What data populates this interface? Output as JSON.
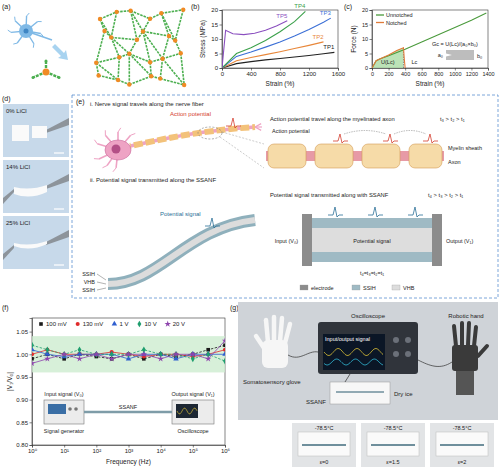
{
  "panels": [
    "(a)",
    "(b)",
    "(c)",
    "(d)",
    "(e)",
    "(f)",
    "(g)"
  ],
  "chart_data": [
    {
      "type": "line",
      "xlabel": "Strain (%)",
      "ylabel": "Stress (MPa)",
      "xlim": [
        0,
        1600
      ],
      "xticks": [
        0,
        400,
        800,
        1200,
        1600
      ],
      "ylim": [
        0,
        20
      ],
      "yticks": [
        0,
        5,
        10,
        15,
        20
      ],
      "series": [
        {
          "name": "TP1",
          "color": "#222222",
          "x": [
            0,
            200,
            400,
            600,
            800,
            1000,
            1200,
            1400,
            1550
          ],
          "values": [
            0,
            1.5,
            2.2,
            2.8,
            3.3,
            3.8,
            4.3,
            4.9,
            5.4
          ]
        },
        {
          "name": "TP2",
          "color": "#e8873a",
          "x": [
            0,
            200,
            400,
            600,
            800,
            1000,
            1200,
            1400
          ],
          "values": [
            0,
            2.5,
            3.6,
            4.6,
            5.6,
            6.7,
            7.8,
            9.0
          ]
        },
        {
          "name": "TP3",
          "color": "#3b6fd6",
          "x": [
            0,
            200,
            400,
            600,
            800,
            1000,
            1200,
            1400,
            1500
          ],
          "values": [
            0,
            4,
            5.5,
            7.2,
            9,
            11,
            13.3,
            15.8,
            17.2
          ]
        },
        {
          "name": "TP4",
          "color": "#3aa04a",
          "x": [
            0,
            200,
            400,
            600,
            800,
            1000,
            1150
          ],
          "values": [
            0,
            5,
            7,
            9.5,
            12.5,
            16,
            19.5
          ]
        },
        {
          "name": "TP5",
          "color": "#8a4fbf",
          "x": [
            0,
            50,
            150,
            300,
            450,
            600,
            750,
            900
          ],
          "values": [
            0,
            13,
            11.8,
            11.5,
            12,
            13,
            14.5,
            16.3
          ]
        }
      ]
    },
    {
      "type": "line",
      "xlabel": "Strain (%)",
      "ylabel": "Force (N)",
      "xlim": [
        0,
        1400
      ],
      "xticks": [
        0,
        200,
        400,
        600,
        800,
        1000,
        1200,
        1400
      ],
      "ylim": [
        0,
        20
      ],
      "yticks": [
        0,
        5,
        10,
        15,
        20
      ],
      "legend": "top-left",
      "series": [
        {
          "name": "Unnotched",
          "color": "#4a9a3c",
          "x": [
            0,
            50,
            100,
            200,
            400,
            600,
            800,
            1000,
            1200,
            1380
          ],
          "values": [
            0,
            2.5,
            3.2,
            4.2,
            6.5,
            9,
            11.5,
            14,
            16.5,
            19
          ]
        },
        {
          "name": "Notched",
          "color": "#e07b39",
          "x": [
            0,
            50,
            100,
            200,
            300,
            380,
            390,
            400
          ],
          "values": [
            0,
            2.5,
            3.2,
            4.5,
            6,
            7,
            3,
            0
          ]
        }
      ],
      "critical_strain": 380,
      "annotations": {
        "area": "U(Lc)",
        "length": "Lc",
        "formula": "Gc = U(Lc)/(a₀×b₀)",
        "width": "a₀",
        "thickness": "b₀"
      }
    },
    {
      "type": "line",
      "log": "x",
      "xlabel": "Frequency (Hz)",
      "ylabel": "|V₁/V₀|",
      "x": [
        1,
        3,
        10,
        30,
        100,
        300,
        1000,
        3000,
        10000,
        30000,
        100000,
        300000,
        1000000
      ],
      "xlim": [
        1,
        1000000
      ],
      "xticks": [
        {
          "value": 1,
          "label": "10⁰"
        },
        {
          "value": 10,
          "label": "10¹"
        },
        {
          "value": 100,
          "label": "10²"
        },
        {
          "value": 1000,
          "label": "10³"
        },
        {
          "value": 10000,
          "label": "10⁴"
        },
        {
          "value": 100000,
          "label": "10⁵"
        },
        {
          "value": 1000000,
          "label": "10⁶"
        }
      ],
      "ylim": [
        0.8,
        1.08
      ],
      "yticks": [
        {
          "value": 0.8,
          "label": "0.80"
        },
        {
          "value": 0.85,
          "label": "0.85"
        },
        {
          "value": 0.9,
          "label": "0.90"
        },
        {
          "value": 0.95,
          "label": "0.95"
        },
        {
          "value": 1.0,
          "label": "1.00"
        },
        {
          "value": 1.05,
          "label": "1.05"
        }
      ],
      "legend": "top",
      "band": [
        0.96,
        1.04
      ],
      "series": [
        {
          "name": "100 mV",
          "color": "#1a1a1a",
          "marker": "square",
          "line_style": "dashed",
          "values": [
            0.99,
            1.0,
            0.99,
            1.0,
            0.995,
            0.99,
            1.0,
            0.99,
            1.0,
            0.995,
            1.0,
            1.01,
            1.02
          ]
        },
        {
          "name": "130 mV",
          "color": "#e02b2b",
          "marker": "circle",
          "line_style": "solid",
          "values": [
            1.0,
            1.01,
            1.0,
            1.0,
            1.0,
            1.005,
            1.0,
            0.995,
            1.0,
            1.0,
            0.995,
            1.0,
            1.01
          ]
        },
        {
          "name": "1 V",
          "color": "#2f5fd0",
          "marker": "triangle",
          "line_style": "solid",
          "values": [
            1.01,
            1.0,
            0.995,
            1.0,
            1.0,
            1.0,
            0.99,
            1.0,
            1.0,
            0.99,
            1.0,
            1.0,
            1.0
          ]
        },
        {
          "name": "10 V",
          "color": "#1f9e6e",
          "marker": "diamond",
          "line_style": "dashed",
          "values": [
            1.02,
            1.01,
            1.0,
            1.01,
            1.0,
            1.0,
            1.0,
            1.01,
            1.0,
            1.0,
            0.99,
            1.0,
            0.985
          ]
        },
        {
          "name": "20 V",
          "color": "#8e44ad",
          "marker": "star",
          "line_style": "solid",
          "values": [
            0.98,
            0.99,
            1.0,
            0.99,
            1.0,
            0.99,
            1.0,
            1.0,
            0.99,
            1.0,
            1.0,
            0.99,
            1.03
          ]
        }
      ],
      "inset": {
        "input": "Input signal (V₀)",
        "fiber": "SSANF",
        "output": "Output signal (V₁)",
        "source": "Signal generator",
        "meter": "Oscilloscope"
      }
    }
  ],
  "panel_d": {
    "photos": [
      "0% LiCl",
      "14% LiCl",
      "25% LiCl"
    ]
  },
  "panel_e": {
    "part_i": {
      "heading": "i. Nerve signal travels along the nerve fiber",
      "signal": "Action potential",
      "inset_title": "Action potential travel along the myelinated axon",
      "time_order": "t₃ > t₂ > t₁",
      "inset_signal": "Action potential",
      "labels": [
        "Myelin sheath",
        "Axon"
      ]
    },
    "part_ii": {
      "heading": "ii. Potential signal transmitted along the SSANF",
      "signal": "Potential signal",
      "layers": [
        "SSIH",
        "VHB",
        "SSIH"
      ],
      "inset_title": "Potential signal transmitted along with SSANF",
      "time_order": "t₄ > t₃ > t₂ > t₁",
      "input": "Input (V₀)",
      "output": "Output (V₁)",
      "inset_signal": "Potential signal",
      "equal_times": "t₄=t₃=t₂=t₁",
      "key": [
        "electrode",
        "SSIH",
        "VHB"
      ]
    }
  },
  "panel_g": {
    "labels": {
      "glove": "Somatosensory glove",
      "scope": "Oscilloscope",
      "signal": "Input/output signal",
      "hand": "Robotic hand",
      "fiber": "SSANF",
      "ice": "Dry ice"
    },
    "photos": [
      {
        "temperature": "-78.5°C",
        "strain": "ε=0"
      },
      {
        "temperature": "-78.5°C",
        "strain": "ε=1.5"
      },
      {
        "temperature": "-78.5°C",
        "strain": "ε=2"
      }
    ]
  }
}
